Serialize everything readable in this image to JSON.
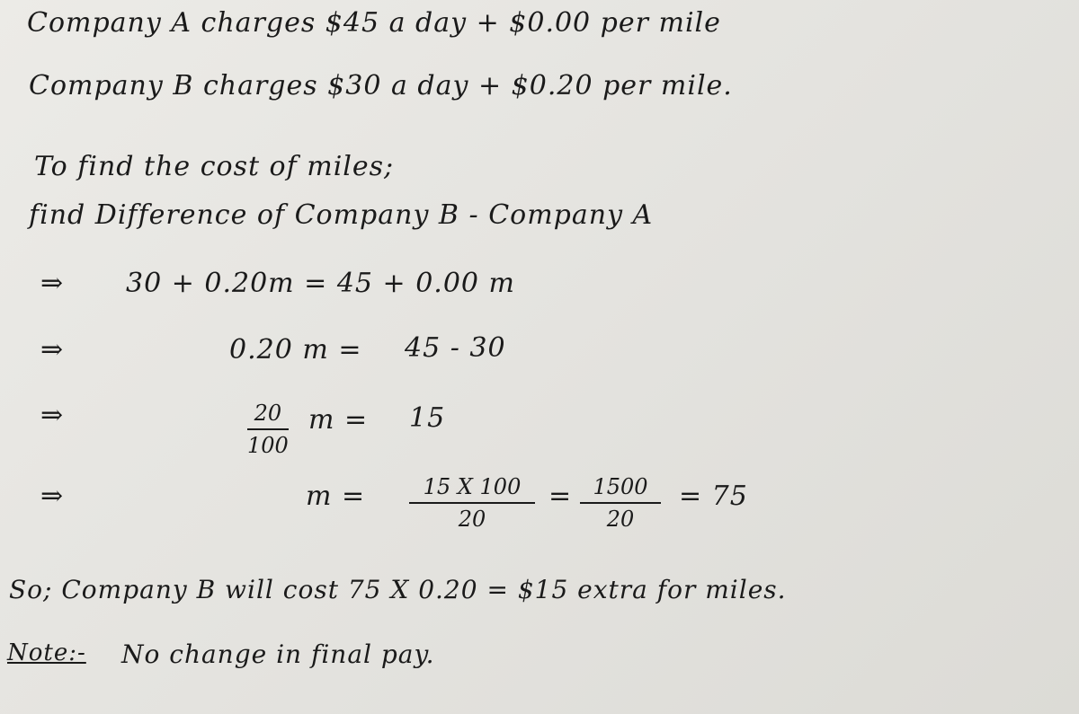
{
  "lines": {
    "company_a": "Company A charges $45 a day + $0.00 per mile",
    "company_b": "Company B charges $30 a day + $0.20 per mile.",
    "intro": "To find the cost of miles;",
    "method": "find Difference of Company B - Company A",
    "step1": "30 + 0.20m  =  45 + 0.00 m",
    "step2_left": "0.20 m =",
    "step2_right": "45 - 30",
    "step3_num": "20",
    "step3_den": "100",
    "step3_rest": "m =",
    "step3_right": "15",
    "step4_left": "m =",
    "step4_num1": "15 X 100",
    "step4_den1": "20",
    "step4_eq": "=",
    "step4_num2": "1500",
    "step4_den2": "20",
    "step4_result": "= 75",
    "conclusion": "So; Company B will cost 75 X 0.20 = $15 extra for miles.",
    "note_label": "Note:-",
    "note_text": "No change in final pay."
  },
  "arrow_symbol": "⇒"
}
